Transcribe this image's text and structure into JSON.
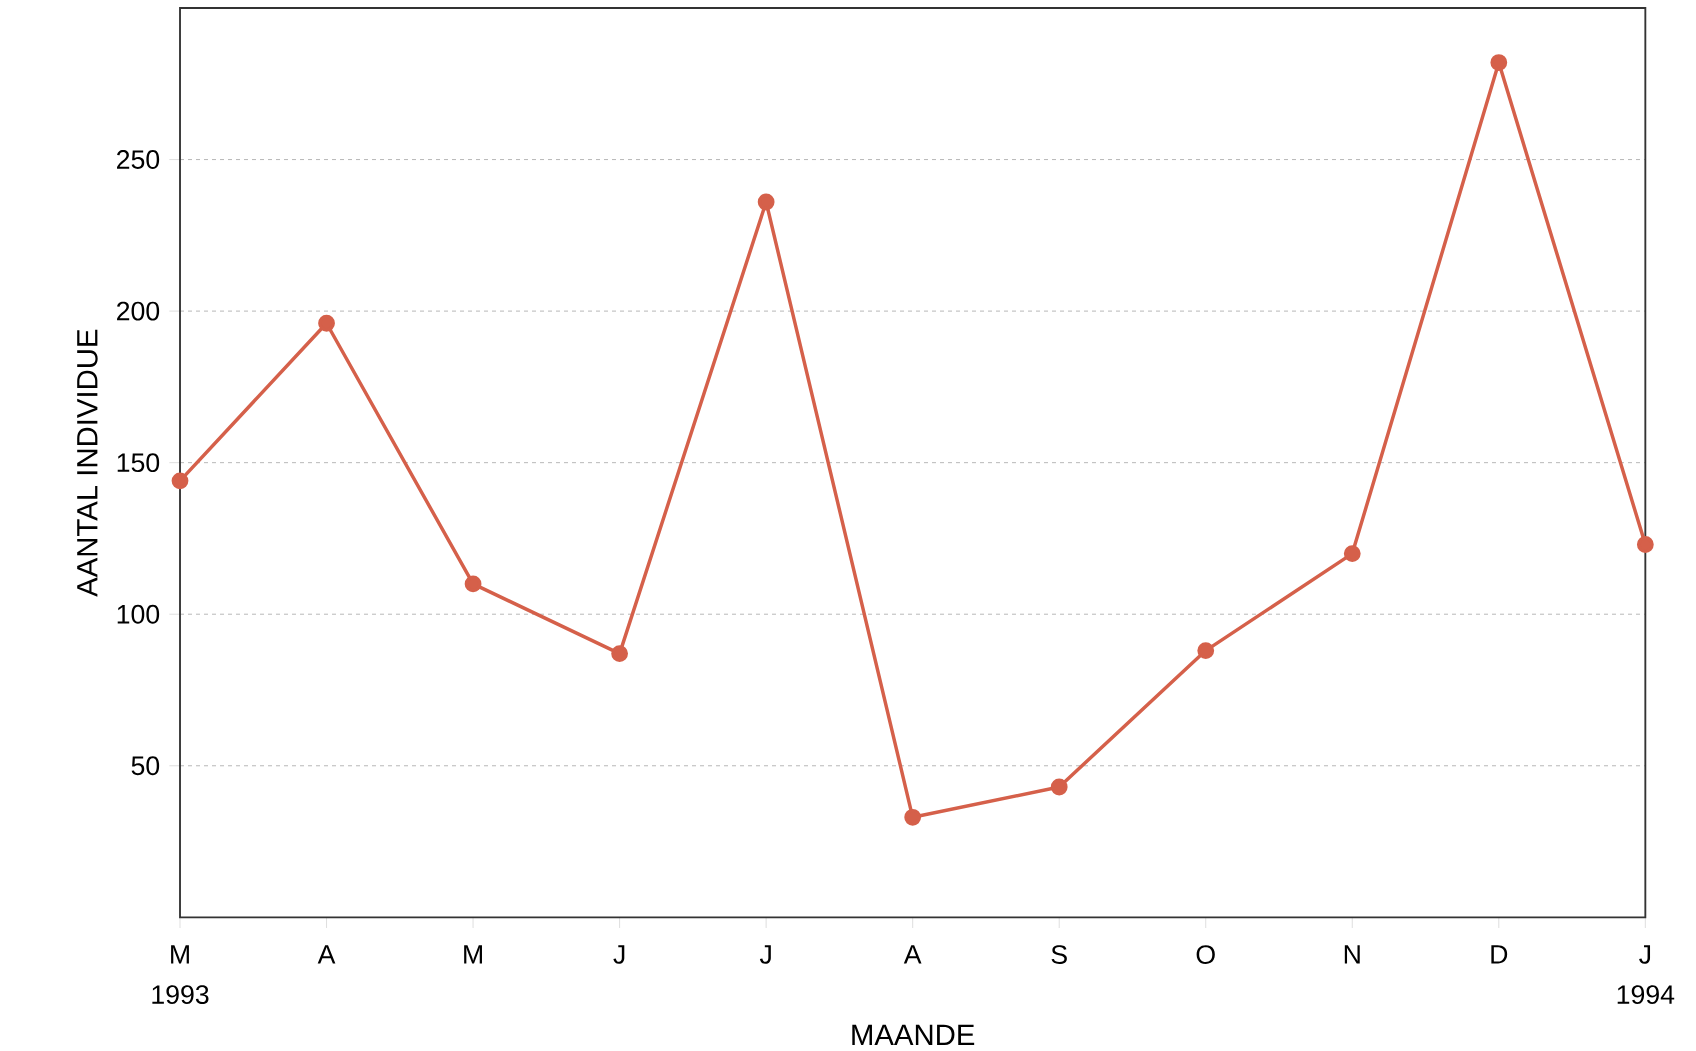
{
  "chart_data": {
    "type": "line",
    "xlabel": "MAANDE",
    "ylabel": "AANTAL INDIVIDUE",
    "categories": [
      "M",
      "A",
      "M",
      "J",
      "J",
      "A",
      "S",
      "O",
      "N",
      "D",
      "J"
    ],
    "series": [
      {
        "color": "#d5604a",
        "values": [
          144,
          196,
          110,
          87,
          236,
          33,
          43,
          88,
          120,
          282,
          123
        ]
      }
    ],
    "ylim": [
      0,
      300
    ],
    "yticks": [
      50,
      100,
      150,
      200,
      250
    ],
    "grid": "y",
    "marker": "circle",
    "line_style": "solid",
    "annotations": [
      "1993",
      "1994"
    ]
  }
}
